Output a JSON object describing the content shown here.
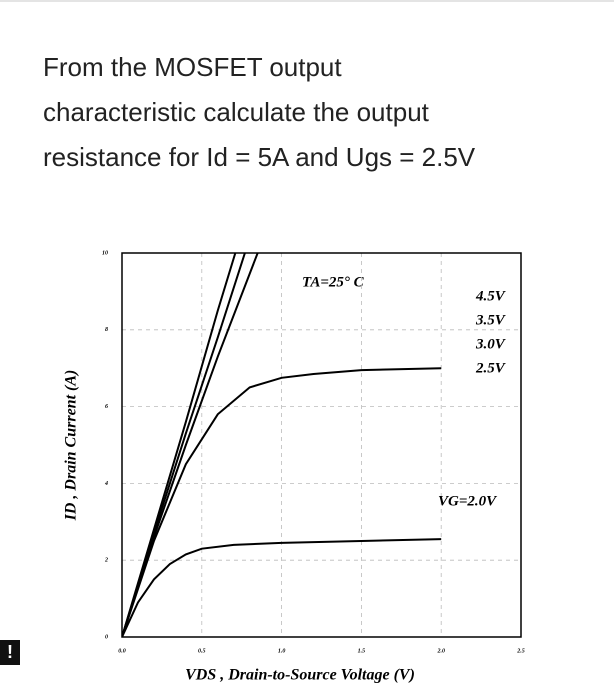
{
  "question": {
    "lines": [
      "From the MOSFET output",
      "characteristic calculate the output",
      "resistance for Id = 5A and Ugs = 2.5V"
    ]
  },
  "chart_data": {
    "type": "line",
    "x_label": "VDS , Drain-to-Source Voltage (V)",
    "y_label": "ID , Drain Current (A)",
    "annotation": "TA=25° C",
    "xlim": [
      0,
      2.5
    ],
    "ylim": [
      0,
      10
    ],
    "xticks": [
      {
        "value": 0,
        "label": "0.0"
      },
      0.5,
      {
        "value": 1,
        "label": "1.0"
      },
      1.5,
      {
        "value": 2,
        "label": "2.0"
      },
      2.5
    ],
    "yticks": [
      0,
      2,
      4,
      6,
      8,
      10
    ],
    "grid": true,
    "series": [
      {
        "name": "4.5V",
        "color": "#000000",
        "x": [
          0,
          0.2,
          0.4,
          0.6,
          0.71
        ],
        "values": [
          0,
          2.8,
          5.6,
          8.5,
          10
        ]
      },
      {
        "name": "3.5V",
        "color": "#000000",
        "x": [
          0,
          0.2,
          0.4,
          0.6,
          0.77
        ],
        "values": [
          0,
          2.7,
          5.3,
          7.8,
          10
        ]
      },
      {
        "name": "3.0V",
        "color": "#000000",
        "x": [
          0,
          0.2,
          0.4,
          0.6,
          0.85
        ],
        "values": [
          0,
          2.6,
          5.0,
          7.3,
          10
        ]
      },
      {
        "name": "2.5V",
        "color": "#000000",
        "x": [
          0,
          0.2,
          0.4,
          0.6,
          0.8,
          1.0,
          1.2,
          1.5,
          2.0
        ],
        "values": [
          0,
          2.5,
          4.5,
          5.8,
          6.5,
          6.75,
          6.85,
          6.95,
          7.0
        ]
      },
      {
        "name": "VG=2.0V",
        "color": "#000000",
        "x": [
          0,
          0.1,
          0.2,
          0.3,
          0.4,
          0.5,
          0.7,
          1.0,
          1.5,
          2.0
        ],
        "values": [
          0,
          0.9,
          1.5,
          1.9,
          2.15,
          2.3,
          2.4,
          2.45,
          2.5,
          2.55
        ]
      }
    ]
  }
}
